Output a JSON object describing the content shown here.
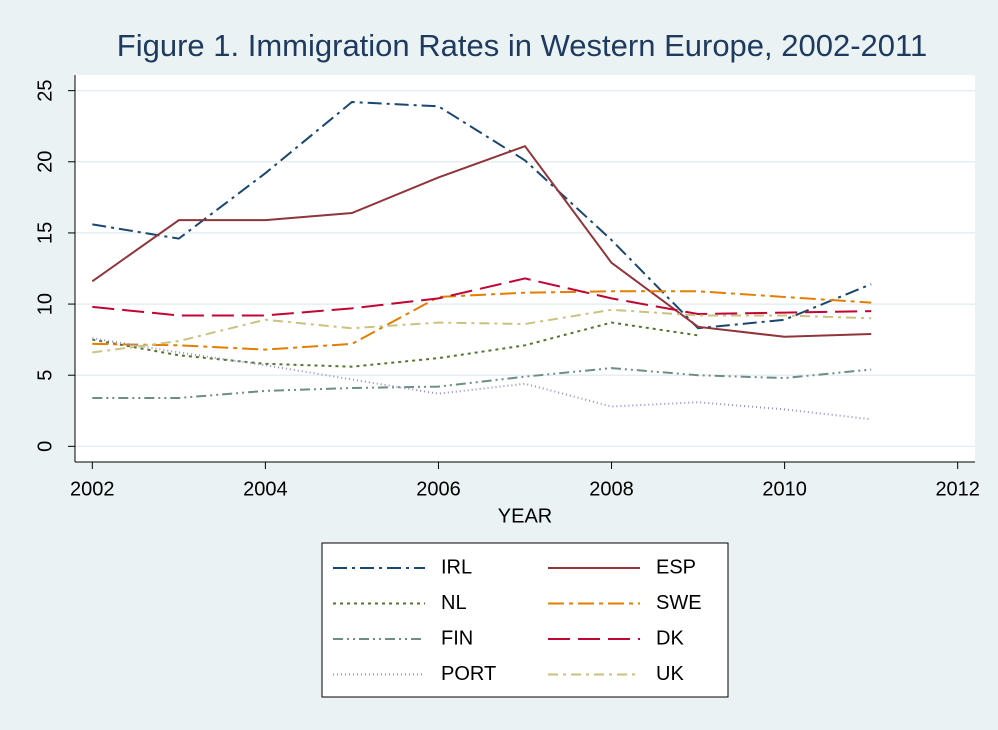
{
  "chart_data": {
    "type": "line",
    "title": "Figure 1. Immigration Rates in Western Europe, 2002-2011",
    "x_label": "YEAR",
    "x": [
      2002,
      2003,
      2004,
      2005,
      2006,
      2007,
      2008,
      2009,
      2010,
      2011
    ],
    "series": [
      {
        "name": "IRL",
        "color": "#1a476f",
        "values": [
          15.6,
          14.6,
          19.2,
          24.2,
          23.9,
          20.1,
          14.5,
          8.3,
          8.9,
          11.4
        ]
      },
      {
        "name": "ESP",
        "color": "#90353b",
        "values": [
          11.6,
          15.9,
          15.9,
          16.4,
          18.9,
          21.1,
          12.9,
          8.4,
          7.7,
          7.9
        ]
      },
      {
        "name": "NL",
        "color": "#55752f",
        "values": [
          7.5,
          6.4,
          5.8,
          5.6,
          6.2,
          7.1,
          8.7,
          7.8,
          null,
          null
        ]
      },
      {
        "name": "SWE",
        "color": "#e37e00",
        "values": [
          7.2,
          7.1,
          6.8,
          7.2,
          10.5,
          10.8,
          10.9,
          10.9,
          10.5,
          10.1
        ]
      },
      {
        "name": "FIN",
        "color": "#6e8e84",
        "values": [
          3.4,
          3.4,
          3.9,
          4.1,
          4.2,
          4.9,
          5.5,
          5.0,
          4.8,
          5.4
        ]
      },
      {
        "name": "DK",
        "color": "#c10534",
        "values": [
          9.8,
          9.2,
          9.2,
          9.7,
          10.4,
          11.8,
          10.4,
          9.3,
          9.4,
          9.5
        ]
      },
      {
        "name": "PORT",
        "color": "#938dd2",
        "values": [
          7.6,
          6.6,
          5.7,
          4.7,
          3.7,
          4.4,
          2.8,
          3.1,
          2.6,
          1.9
        ]
      },
      {
        "name": "UK",
        "color": "#cac27e",
        "values": [
          6.6,
          7.4,
          8.9,
          8.3,
          8.7,
          8.6,
          9.6,
          9.2,
          9.2,
          9.0
        ]
      }
    ],
    "xlim": [
      2001.8,
      2012.2
    ],
    "xticks": [
      2002,
      2004,
      2006,
      2008,
      2010,
      2012
    ],
    "ylim": [
      -1.1,
      26.1
    ],
    "yticks": [
      0,
      5,
      10,
      15,
      20,
      25
    ],
    "grid": true,
    "legend": "bottom"
  }
}
